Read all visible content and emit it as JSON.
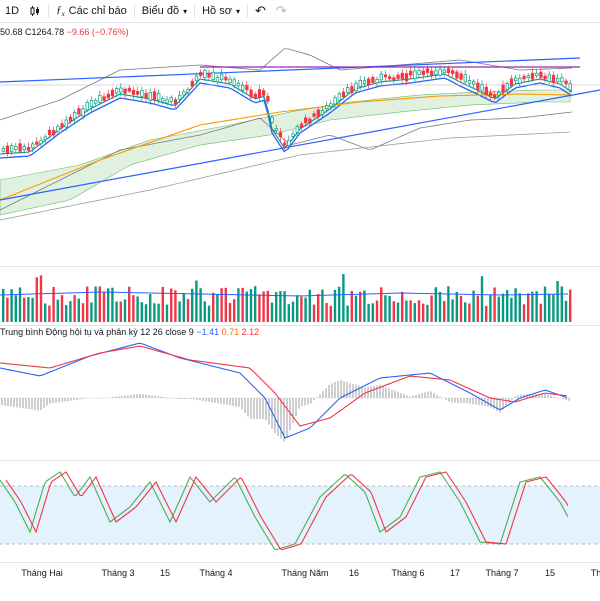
{
  "toolbar": {
    "interval_label": "1D",
    "indicators_label": "Các chỉ báo",
    "chart_type_label": "Biểu đồ",
    "profile_label": "Hồ sơ"
  },
  "price_legend": {
    "open_partial": "50.68",
    "close": "C1264.78",
    "change": "−9.66 (−0.76%)"
  },
  "macd_legend": {
    "title": "Trung bình Động hội tụ và phân kỳ 12 26 close 9",
    "v1": "−1.41",
    "v2": "0.71",
    "v3": "2.12"
  },
  "time_axis": {
    "labels": [
      "Tháng Hai",
      "Tháng 3",
      "15",
      "Tháng 4",
      "Tháng Năm",
      "16",
      "Tháng 6",
      "17",
      "Tháng 7",
      "15",
      "Th"
    ]
  },
  "colors": {
    "up": "#089981",
    "down": "#f23645",
    "blue": "#2962ff",
    "orange": "#ff9800",
    "purple": "#9c27b0",
    "cloud": "#a5d6a7"
  }
}
